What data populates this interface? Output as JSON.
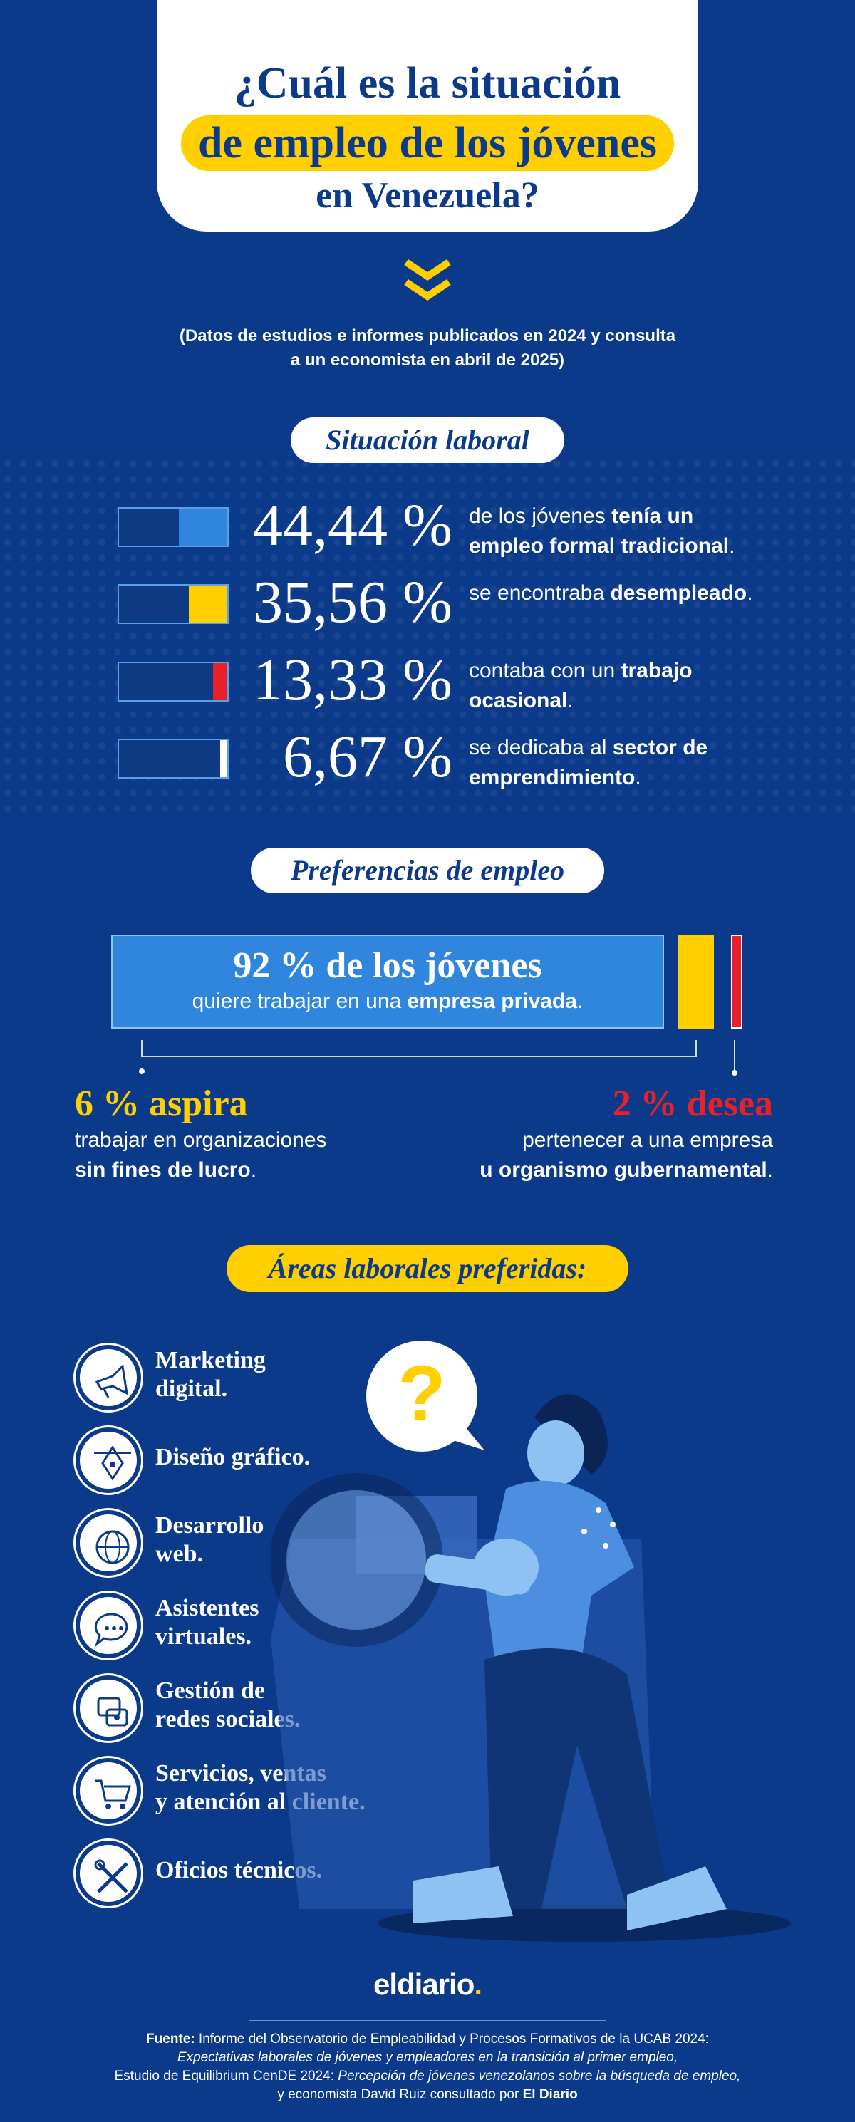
{
  "title": {
    "line1": "¿Cuál es la situación",
    "line2": "de empleo de los jóvenes",
    "line3": "en Venezuela?"
  },
  "subtitle": {
    "line1": "(Datos de estudios e informes publicados en 2024 y consulta",
    "line2": "a un economista en abril de 2025)"
  },
  "situacion": {
    "heading": "Situación laboral",
    "stats": [
      {
        "pct": "44,44 %",
        "fill": 0.4444,
        "color": "#2f86dc",
        "desc_plain": "de los jóvenes ",
        "desc_bold": "tenía un empleo formal tradicional",
        "desc_end": "."
      },
      {
        "pct": "35,56 %",
        "fill": 0.3556,
        "color": "#ffcf00",
        "desc_plain": "se encontraba ",
        "desc_bold": "desempleado",
        "desc_end": "."
      },
      {
        "pct": "13,33 %",
        "fill": 0.1333,
        "color": "#e8202a",
        "desc_plain": "contaba con un ",
        "desc_bold": "trabajo ocasional",
        "desc_end": "."
      },
      {
        "pct": "6,67 %",
        "fill": 0.0667,
        "color": "#ffffff",
        "desc_plain": "se dedicaba al ",
        "desc_bold": "sector de emprendimiento",
        "desc_end": "."
      }
    ]
  },
  "preferencias": {
    "heading": "Preferencias de empleo",
    "main_title": "92 % de los jóvenes",
    "main_sub_plain": "quiere trabajar en una ",
    "main_sub_bold": "empresa privada",
    "main_sub_end": ".",
    "left_head": "6 % aspira",
    "left_line1": "trabajar en organizaciones",
    "left_line2_bold": "sin fines de lucro",
    "left_line2_end": ".",
    "right_head": "2 % desea",
    "right_line1": "pertenecer a una empresa",
    "right_line2_bold": "u organismo gubernamental",
    "right_line2_end": ".",
    "colors": {
      "main": "#2f86dc",
      "left": "#ffcf00",
      "right": "#e8202a"
    }
  },
  "areas": {
    "heading": "Áreas laborales preferidas:",
    "items": [
      {
        "line1": "Marketing",
        "line2": "digital.",
        "icon": "megaphone-icon"
      },
      {
        "line1": "Diseño gráfico.",
        "line2": "",
        "icon": "pen-tool-icon"
      },
      {
        "line1": "Desarrollo",
        "line2": "web.",
        "icon": "globe-icon"
      },
      {
        "line1": "Asistentes",
        "line2": "virtuales.",
        "icon": "chat-bubble-icon"
      },
      {
        "line1": "Gestión de",
        "line2": "redes sociales.",
        "icon": "social-media-icon"
      },
      {
        "line1": "Servicios, ventas",
        "line2": "y atención al cliente.",
        "icon": "shopping-cart-icon"
      },
      {
        "line1": "Oficios técnicos.",
        "line2": "",
        "icon": "tools-icon"
      }
    ]
  },
  "logo": {
    "text": "eldiario",
    "dot": "."
  },
  "source": {
    "label": "Fuente:",
    "line1": " Informe del Observatorio de Empleabilidad y Procesos Formativos de la UCAB 2024:",
    "line2_italic": "Expectativas laborales de jóvenes y empleadores en la transición al primer empleo,",
    "line3_plain": "Estudio de Equilibrium CenDE 2024: ",
    "line3_italic": "Percepción de jóvenes venezolanos sobre la búsqueda de empleo,",
    "line4_plain": "y economista David Ruiz consultado por ",
    "line4_bold": "El Diario"
  }
}
